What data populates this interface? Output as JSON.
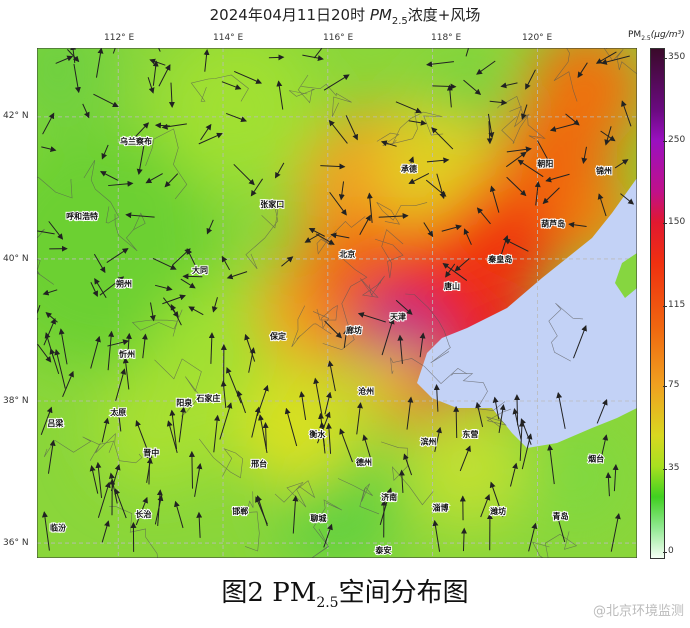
{
  "title": {
    "prefix": "2024年04月11日20时",
    "pm": "PM",
    "sub": "2.5",
    "suffix": "浓度+风场"
  },
  "lon_ticks": [
    "112° E",
    "114° E",
    "116° E",
    "118° E",
    "120° E"
  ],
  "lat_ticks": [
    "42° N",
    "40° N",
    "38° N",
    "36° N"
  ],
  "colorbar": {
    "label_pm": "PM",
    "label_sub": "2.5",
    "label_unit": "(μg/m³)",
    "ticks": [
      "350",
      "250",
      "150",
      "115",
      "75",
      "35",
      "0"
    ]
  },
  "colors": {
    "sea": "#c3d2f6",
    "low": "#7ed83a",
    "mid": "#f0a020",
    "high": "#e81c24",
    "peak": "#a0109a"
  },
  "cities": [
    {
      "name": "乌兰察布",
      "lon": 112.34,
      "lat": 41.62
    },
    {
      "name": "呼和浩特",
      "lon": 111.31,
      "lat": 40.56
    },
    {
      "name": "张家口",
      "lon": 114.94,
      "lat": 40.73
    },
    {
      "name": "大同",
      "lon": 113.56,
      "lat": 39.8
    },
    {
      "name": "朔州",
      "lon": 112.11,
      "lat": 39.61
    },
    {
      "name": "忻州",
      "lon": 112.17,
      "lat": 38.62
    },
    {
      "name": "保定",
      "lon": 115.05,
      "lat": 38.87
    },
    {
      "name": "北京",
      "lon": 116.37,
      "lat": 40.03
    },
    {
      "name": "承德",
      "lon": 117.55,
      "lat": 41.23
    },
    {
      "name": "朝阳",
      "lon": 120.15,
      "lat": 41.3
    },
    {
      "name": "锦州",
      "lon": 121.27,
      "lat": 41.2
    },
    {
      "name": "葫芦岛",
      "lon": 120.3,
      "lat": 40.46
    },
    {
      "name": "秦皇岛",
      "lon": 119.29,
      "lat": 39.96
    },
    {
      "name": "唐山",
      "lon": 118.37,
      "lat": 39.58
    },
    {
      "name": "天津",
      "lon": 117.34,
      "lat": 39.15
    },
    {
      "name": "廊坊",
      "lon": 116.5,
      "lat": 38.96
    },
    {
      "name": "沧州",
      "lon": 116.73,
      "lat": 38.1
    },
    {
      "name": "吕梁",
      "lon": 110.8,
      "lat": 37.65
    },
    {
      "name": "太原",
      "lon": 112.0,
      "lat": 37.8
    },
    {
      "name": "阳泉",
      "lon": 113.26,
      "lat": 37.94
    },
    {
      "name": "石家庄",
      "lon": 113.72,
      "lat": 38.0
    },
    {
      "name": "衡水",
      "lon": 115.8,
      "lat": 37.49
    },
    {
      "name": "滨州",
      "lon": 117.92,
      "lat": 37.39
    },
    {
      "name": "东营",
      "lon": 118.72,
      "lat": 37.49
    },
    {
      "name": "烟台",
      "lon": 121.12,
      "lat": 37.15
    },
    {
      "name": "晋中",
      "lon": 112.63,
      "lat": 37.23
    },
    {
      "name": "邢台",
      "lon": 114.69,
      "lat": 37.08
    },
    {
      "name": "德州",
      "lon": 116.69,
      "lat": 37.1
    },
    {
      "name": "济南",
      "lon": 117.17,
      "lat": 36.61
    },
    {
      "name": "淄博",
      "lon": 118.15,
      "lat": 36.46
    },
    {
      "name": "潍坊",
      "lon": 119.25,
      "lat": 36.41
    },
    {
      "name": "青岛",
      "lon": 120.44,
      "lat": 36.34
    },
    {
      "name": "长治",
      "lon": 112.48,
      "lat": 36.37
    },
    {
      "name": "邯郸",
      "lon": 114.33,
      "lat": 36.41
    },
    {
      "name": "聊城",
      "lon": 115.82,
      "lat": 36.31
    },
    {
      "name": "临汾",
      "lon": 110.85,
      "lat": 36.18
    },
    {
      "name": "泰安",
      "lon": 117.06,
      "lat": 35.86
    }
  ],
  "caption": {
    "prefix": "图2  PM",
    "sub": "2.5",
    "suffix": "空间分布图"
  },
  "watermark": "@北京环境监测"
}
